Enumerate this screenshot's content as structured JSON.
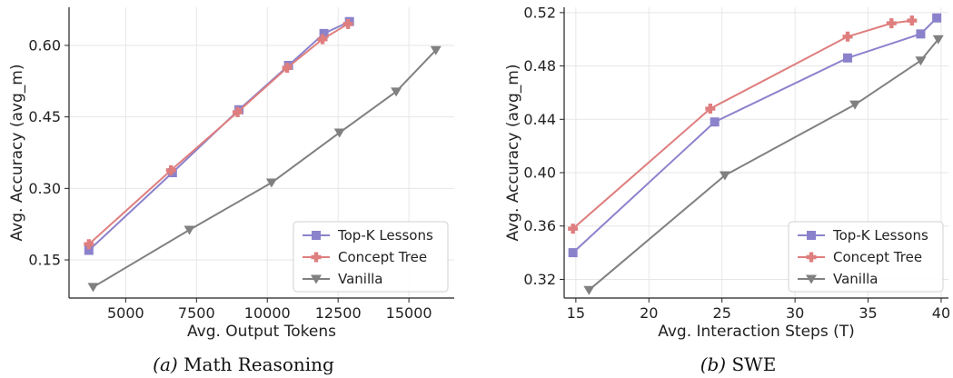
{
  "chart_data": [
    {
      "type": "line",
      "caption_prefix": "(a)",
      "caption": "Math Reasoning",
      "xlabel": "Avg. Output Tokens",
      "ylabel": "Avg. Accuracy (avg_m)",
      "xlim": [
        3000,
        16600
      ],
      "ylim": [
        0.07,
        0.68
      ],
      "xticks": [
        5000,
        7500,
        10000,
        12500,
        15000
      ],
      "xtick_labels": [
        "5000",
        "7500",
        "10000",
        "12500",
        "15000"
      ],
      "yticks": [
        0.15,
        0.3,
        0.45,
        0.6
      ],
      "ytick_labels": [
        "0.15",
        "0.30",
        "0.45",
        "0.60"
      ],
      "grid": true,
      "legend_position": "bottom-right",
      "series": [
        {
          "name": "Top-K Lessons",
          "color": "#8b82cc",
          "marker": "square",
          "x": [
            3700,
            6650,
            9000,
            10750,
            12000,
            12900
          ],
          "y": [
            0.17,
            0.333,
            0.465,
            0.558,
            0.625,
            0.65
          ]
        },
        {
          "name": "Concept Tree",
          "color": "#df7e7e",
          "marker": "plus",
          "x": [
            3700,
            6600,
            8950,
            10700,
            11950,
            12850
          ],
          "y": [
            0.183,
            0.338,
            0.46,
            0.553,
            0.613,
            0.645
          ]
        },
        {
          "name": "Vanilla",
          "color": "#808080",
          "marker": "triangle-down",
          "x": [
            3850,
            7250,
            10150,
            12550,
            14550,
            15950
          ],
          "y": [
            0.093,
            0.213,
            0.312,
            0.417,
            0.503,
            0.59
          ]
        }
      ]
    },
    {
      "type": "line",
      "caption_prefix": "(b)",
      "caption": "SWE",
      "xlabel": "Avg. Interaction Steps (T)",
      "ylabel": "Avg. Accuracy (avg_m)",
      "xlim": [
        14.2,
        40.5
      ],
      "ylim": [
        0.306,
        0.524
      ],
      "xticks": [
        15,
        20,
        25,
        30,
        35,
        40
      ],
      "xtick_labels": [
        "15",
        "20",
        "25",
        "30",
        "35",
        "40"
      ],
      "yticks": [
        0.32,
        0.36,
        0.4,
        0.44,
        0.48,
        0.52
      ],
      "ytick_labels": [
        "0.32",
        "0.36",
        "0.40",
        "0.44",
        "0.48",
        "0.52"
      ],
      "grid": true,
      "legend_position": "bottom-right",
      "series": [
        {
          "name": "Top-K Lessons",
          "color": "#8b82cc",
          "marker": "square",
          "x": [
            14.8,
            24.5,
            33.6,
            38.6,
            39.7
          ],
          "y": [
            0.34,
            0.438,
            0.486,
            0.504,
            0.516
          ]
        },
        {
          "name": "Concept Tree",
          "color": "#df7e7e",
          "marker": "plus",
          "x": [
            14.8,
            24.2,
            33.6,
            36.6,
            38.0
          ],
          "y": [
            0.358,
            0.448,
            0.502,
            0.512,
            0.514
          ]
        },
        {
          "name": "Vanilla",
          "color": "#808080",
          "marker": "triangle-down",
          "x": [
            15.9,
            25.2,
            34.1,
            38.6,
            39.8
          ],
          "y": [
            0.312,
            0.398,
            0.451,
            0.484,
            0.5
          ]
        }
      ]
    }
  ]
}
